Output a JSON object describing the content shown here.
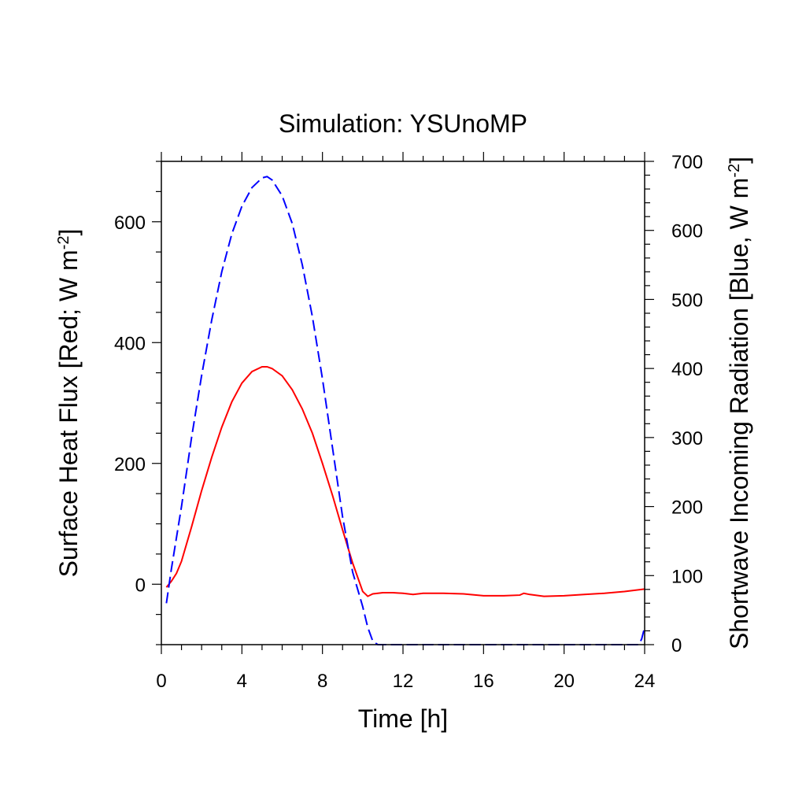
{
  "chart_data": {
    "type": "line",
    "title": "Simulation: YSUnoMP",
    "xlabel": "Time [h]",
    "ylabel_left": {
      "text": "Surface Heat Flux [Red; W m",
      "sup": "-2",
      "close": "]"
    },
    "ylabel_right": {
      "text": "Shortwave Incoming Radiation [Blue, W m",
      "sup": "-2",
      "close": "]"
    },
    "xlim": [
      0,
      24
    ],
    "ylim_left": [
      -100,
      700
    ],
    "ylim_right": [
      0,
      700
    ],
    "x_ticks": [
      0,
      4,
      8,
      12,
      16,
      20,
      24
    ],
    "y_left_ticks": [
      0,
      200,
      400,
      600
    ],
    "y_right_ticks": [
      0,
      100,
      200,
      300,
      400,
      500,
      600,
      700
    ],
    "grid": false,
    "series": [
      {
        "axis": "left",
        "color": "#ff0000",
        "dash": "solid",
        "x": [
          0.25,
          0.5,
          0.75,
          1,
          1.5,
          2,
          2.5,
          3,
          3.5,
          4,
          4.5,
          5,
          5.25,
          5.5,
          6,
          6.5,
          7,
          7.5,
          8,
          8.5,
          9,
          9.5,
          10,
          10.25,
          10.5,
          11,
          11.5,
          12,
          12.5,
          13,
          14,
          15,
          16,
          17,
          17.8,
          18,
          18.3,
          19,
          20,
          21,
          22,
          23,
          24
        ],
        "y": [
          -5,
          5,
          18,
          38,
          95,
          155,
          210,
          260,
          302,
          333,
          352,
          360,
          360,
          357,
          345,
          322,
          290,
          250,
          200,
          147,
          90,
          35,
          -12,
          -20,
          -16,
          -14,
          -14,
          -15,
          -17,
          -15,
          -15,
          -16,
          -19,
          -19,
          -18,
          -15,
          -17,
          -20,
          -19,
          -17,
          -15,
          -12,
          -8
        ]
      },
      {
        "axis": "right",
        "color": "#0000ff",
        "dash": "dashed",
        "x": [
          0.25,
          0.5,
          1,
          1.5,
          2,
          2.5,
          3,
          3.5,
          4,
          4.5,
          5,
          5.25,
          5.5,
          6,
          6.5,
          7,
          7.5,
          8,
          8.5,
          9,
          9.5,
          9.8,
          10,
          10.25,
          10.5,
          10.75,
          11,
          12,
          16,
          20,
          23.7,
          23.85,
          24
        ],
        "y": [
          60,
          110,
          200,
          300,
          390,
          470,
          540,
          595,
          635,
          662,
          676,
          678,
          673,
          650,
          610,
          550,
          475,
          385,
          285,
          185,
          105,
          75,
          55,
          25,
          5,
          0,
          0,
          0,
          0,
          0,
          0,
          8,
          25
        ]
      }
    ]
  }
}
